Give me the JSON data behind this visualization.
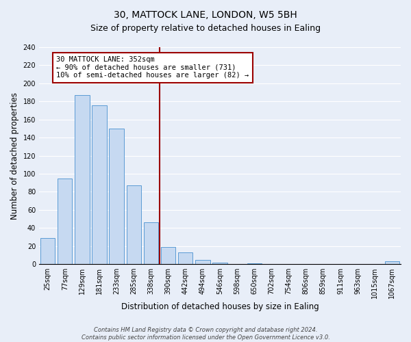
{
  "title": "30, MATTOCK LANE, LONDON, W5 5BH",
  "subtitle": "Size of property relative to detached houses in Ealing",
  "xlabel": "Distribution of detached houses by size in Ealing",
  "ylabel": "Number of detached properties",
  "categories": [
    "25sqm",
    "77sqm",
    "129sqm",
    "181sqm",
    "233sqm",
    "285sqm",
    "338sqm",
    "390sqm",
    "442sqm",
    "494sqm",
    "546sqm",
    "598sqm",
    "650sqm",
    "702sqm",
    "754sqm",
    "806sqm",
    "859sqm",
    "911sqm",
    "963sqm",
    "1015sqm",
    "1067sqm"
  ],
  "values": [
    29,
    95,
    187,
    176,
    150,
    87,
    46,
    19,
    13,
    5,
    2,
    0,
    1,
    0,
    0,
    0,
    0,
    0,
    0,
    0,
    3
  ],
  "bar_color": "#c6d9f1",
  "bar_edge_color": "#5b9bd5",
  "vline_x_index": 6.5,
  "vline_color": "#9b0000",
  "annotation_line1": "30 MATTOCK LANE: 352sqm",
  "annotation_line2": "← 90% of detached houses are smaller (731)",
  "annotation_line3": "10% of semi-detached houses are larger (82) →",
  "annotation_box_color": "#ffffff",
  "annotation_box_edge_color": "#9b0000",
  "ylim": [
    0,
    240
  ],
  "yticks": [
    0,
    20,
    40,
    60,
    80,
    100,
    120,
    140,
    160,
    180,
    200,
    220,
    240
  ],
  "footer": "Contains HM Land Registry data © Crown copyright and database right 2024.\nContains public sector information licensed under the Open Government Licence v3.0.",
  "bg_color": "#e8eef8",
  "title_fontsize": 10,
  "subtitle_fontsize": 9,
  "axis_label_fontsize": 8.5,
  "tick_fontsize": 7,
  "annotation_fontsize": 7.5,
  "footer_fontsize": 6
}
